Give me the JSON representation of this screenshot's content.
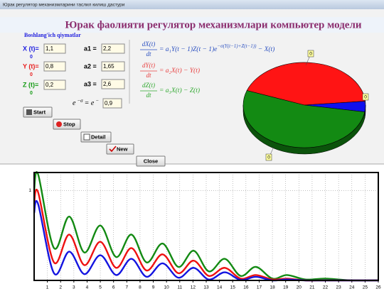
{
  "window": {
    "title": "Юрак регулятор механизмларини таслил килиш дастури"
  },
  "header": {
    "title": "Юрак фаолияти регулятор механизмлари компьютер модели"
  },
  "inputs": {
    "heading": "Boshlang'ich qiymatlar",
    "initial": [
      {
        "label": "X  (t)=",
        "value": "1,1",
        "note": "0",
        "color": "#1f1fe0"
      },
      {
        "label": "Y  (t)=",
        "value": "0,8",
        "note": "0",
        "color": "#e81c1c"
      },
      {
        "label": "Z  (t)=",
        "value": "0,2",
        "note": "0",
        "color": "#139a13"
      }
    ],
    "params": [
      {
        "label": "a1 =",
        "value": "2,2"
      },
      {
        "label": "a2 =",
        "value": "1,65"
      },
      {
        "label": "a3 =",
        "value": "2,6"
      }
    ],
    "sigma": {
      "lhs": "e",
      "lhs_sup": "−σ",
      "mid": "= e",
      "mid_sup": "−",
      "value": "0,9"
    }
  },
  "equations": [
    {
      "num": "dX(t)",
      "den": "dt",
      "rhs": "= a₁Y(t − 1)Z(t − 1)e",
      "sup": "−σ(Y(t−1)+Z(t−1))",
      "tail": " − X(t)",
      "color": "#2a4fc0"
    },
    {
      "num": "dY(t)",
      "den": "dt",
      "rhs": "= a₂X(t) − Y(t)",
      "color": "#e84040"
    },
    {
      "num": "dZ(t)",
      "den": "dt",
      "rhs": "= a₃X(t) − Z(t)",
      "color": "#2fa82f"
    }
  ],
  "buttons": [
    {
      "label": "Start"
    },
    {
      "label": "Stop"
    },
    {
      "label": "Detail"
    },
    {
      "label": "New"
    },
    {
      "label": "Close"
    }
  ],
  "chart_data": [
    {
      "type": "pie",
      "values": [
        43,
        4,
        53
      ],
      "colors": [
        "#ff1414",
        "#1010ee",
        "#138a13"
      ],
      "annotations": [
        "0",
        "0",
        "0"
      ]
    },
    {
      "type": "line",
      "x": [
        0,
        0.3,
        1.5,
        2.65,
        3.8,
        5.0,
        6.2,
        7.35,
        8.5,
        9.7,
        10.9,
        12.05,
        13.2,
        14.4,
        15.6,
        16.75,
        18,
        19.1,
        20.5,
        22,
        24,
        26
      ],
      "series": [
        {
          "color": "#138a13",
          "values": [
            1.0,
            1.18,
            0.36,
            0.71,
            0.31,
            0.61,
            0.26,
            0.51,
            0.2,
            0.41,
            0.15,
            0.33,
            0.1,
            0.24,
            0.05,
            0.15,
            0.02,
            0.06,
            0.01,
            0.02,
            0,
            0
          ]
        },
        {
          "color": "#ee1111",
          "values": [
            0.85,
            0.98,
            0.2,
            0.51,
            0.17,
            0.43,
            0.14,
            0.36,
            0.11,
            0.29,
            0.08,
            0.22,
            0.05,
            0.14,
            0.02,
            0.06,
            0.01,
            0.02,
            0,
            0,
            0,
            0
          ]
        },
        {
          "color": "#1414e0",
          "values": [
            0.75,
            0.85,
            0.08,
            0.32,
            0.07,
            0.28,
            0.06,
            0.24,
            0.04,
            0.19,
            0.03,
            0.14,
            0.01,
            0.09,
            0.005,
            0.04,
            0,
            0.01,
            0,
            0,
            0,
            0
          ]
        }
      ],
      "xlim": [
        0,
        26
      ],
      "ylim": [
        0,
        1.2
      ],
      "xticks": [
        1,
        2,
        3,
        4,
        5,
        6,
        7,
        8,
        9,
        10,
        11,
        12,
        13,
        14,
        15,
        16,
        17,
        18,
        19,
        20,
        21,
        22,
        23,
        24,
        25,
        26
      ],
      "yticks": [
        1
      ],
      "grid": true
    }
  ]
}
